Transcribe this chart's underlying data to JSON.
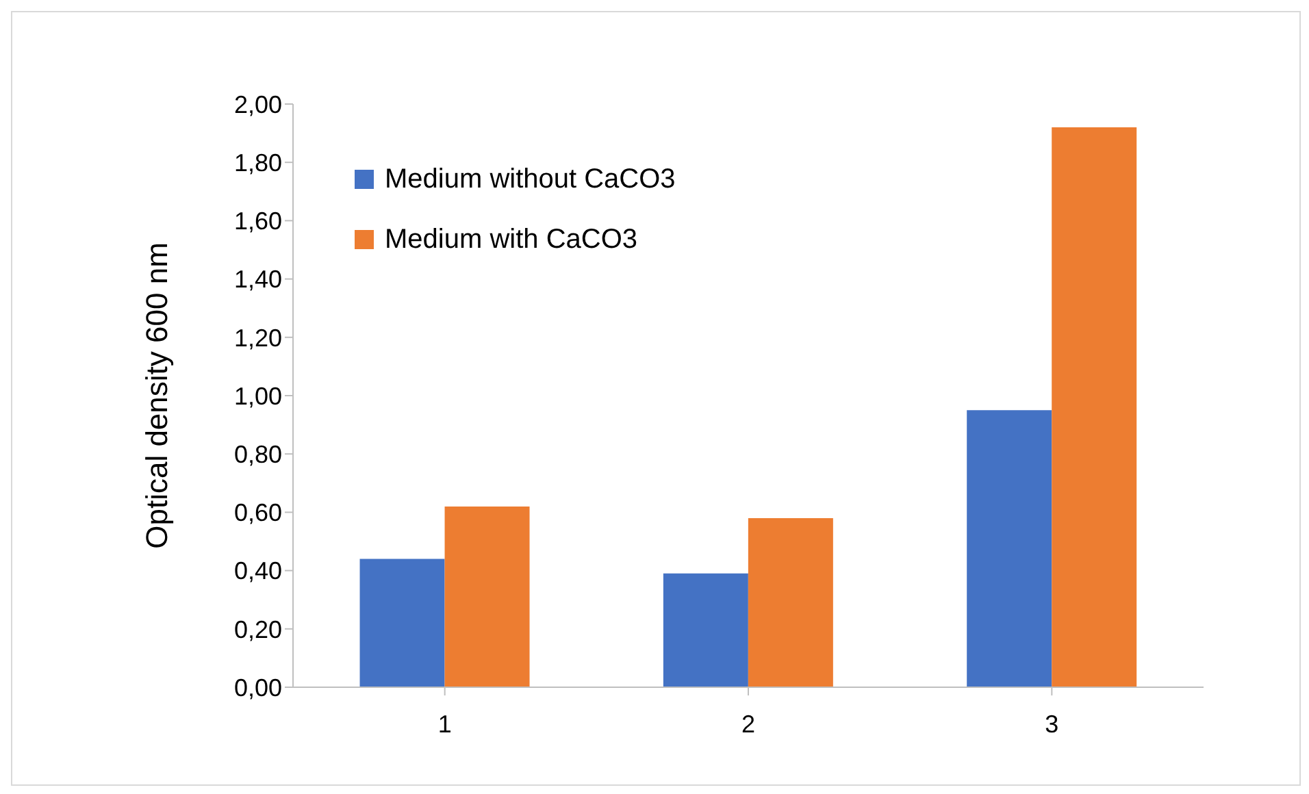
{
  "chart_data": {
    "type": "bar",
    "ylabel": "Optical density  600 nm",
    "categories": [
      "1",
      "2",
      "3"
    ],
    "series": [
      {
        "name": "Medium without CaCO3",
        "color": "#4472c4",
        "values": [
          0.44,
          0.39,
          0.95
        ]
      },
      {
        "name": "Medium with CaCO3",
        "color": "#ed7d31",
        "values": [
          0.62,
          0.58,
          1.92
        ]
      }
    ],
    "ylim": [
      0,
      2
    ],
    "yticks": [
      {
        "value": 0,
        "label": "0,00"
      },
      {
        "value": 0.2,
        "label": "0,20"
      },
      {
        "value": 0.4,
        "label": "0,40"
      },
      {
        "value": 0.6,
        "label": "0,60"
      },
      {
        "value": 0.8,
        "label": "0,80"
      },
      {
        "value": 1,
        "label": "1,00"
      },
      {
        "value": 1.2,
        "label": "1,20"
      },
      {
        "value": 1.4,
        "label": "1,40"
      },
      {
        "value": 1.6,
        "label": "1,60"
      },
      {
        "value": 1.8,
        "label": "1,80"
      },
      {
        "value": 2,
        "label": "2,00"
      }
    ],
    "grid": false,
    "legend": "top left"
  }
}
